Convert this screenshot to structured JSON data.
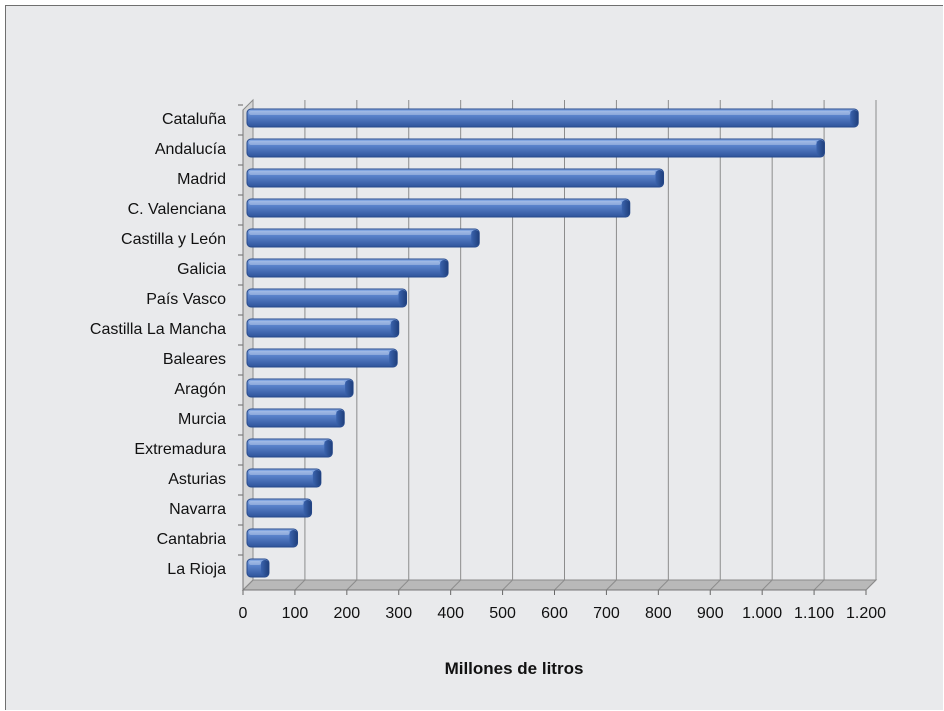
{
  "chart_data": {
    "type": "bar",
    "orientation": "horizontal",
    "title": "",
    "xlabel": "Millones de litros",
    "ylabel": "",
    "categories": [
      "Cataluña",
      "Andalucía",
      "Madrid",
      "C. Valenciana",
      "Castilla y León",
      "Galicia",
      "País Vasco",
      "Castilla La Mancha",
      "Baleares",
      "Aragón",
      "Murcia",
      "Extremadura",
      "Asturias",
      "Navarra",
      "Cantabria",
      "La Rioja"
    ],
    "values": [
      1185,
      1120,
      810,
      745,
      455,
      395,
      315,
      300,
      297,
      212,
      195,
      172,
      150,
      132,
      105,
      50
    ],
    "xlim": [
      0,
      1200
    ],
    "ticks": [
      "0",
      "100",
      "200",
      "300",
      "400",
      "500",
      "600",
      "700",
      "800",
      "900",
      "1.000",
      "1.100",
      "1.200"
    ],
    "grid": true,
    "bar_color": "#4a72b8"
  }
}
